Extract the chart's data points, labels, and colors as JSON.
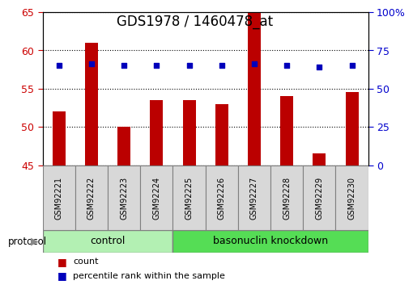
{
  "title": "GDS1978 / 1460478_at",
  "samples": [
    "GSM92221",
    "GSM92222",
    "GSM92223",
    "GSM92224",
    "GSM92225",
    "GSM92226",
    "GSM92227",
    "GSM92228",
    "GSM92229",
    "GSM92230"
  ],
  "count_values": [
    52.0,
    61.0,
    50.0,
    53.5,
    53.5,
    53.0,
    65.0,
    54.0,
    46.5,
    54.5
  ],
  "percentile_values": [
    65,
    66,
    65,
    65,
    65,
    65,
    66,
    65,
    64,
    65
  ],
  "bar_color": "#bb0000",
  "dot_color": "#0000bb",
  "ylim_left": [
    45,
    65
  ],
  "ylim_right": [
    0,
    100
  ],
  "yticks_left": [
    45,
    50,
    55,
    60,
    65
  ],
  "yticks_right": [
    0,
    25,
    50,
    75,
    100
  ],
  "control_count": 4,
  "basonuclin_count": 6,
  "group_labels": [
    "control",
    "basonuclin knockdown"
  ],
  "group_color_light": "#b3f0b3",
  "group_color_dark": "#55dd55",
  "protocol_label": "protocol",
  "legend_items": [
    {
      "label": "count",
      "color": "#bb0000"
    },
    {
      "label": "percentile rank within the sample",
      "color": "#0000bb"
    }
  ],
  "tick_label_color_left": "#cc0000",
  "tick_label_color_right": "#0000cc",
  "title_fontsize": 12,
  "sample_fontsize": 7,
  "bar_width": 0.4
}
